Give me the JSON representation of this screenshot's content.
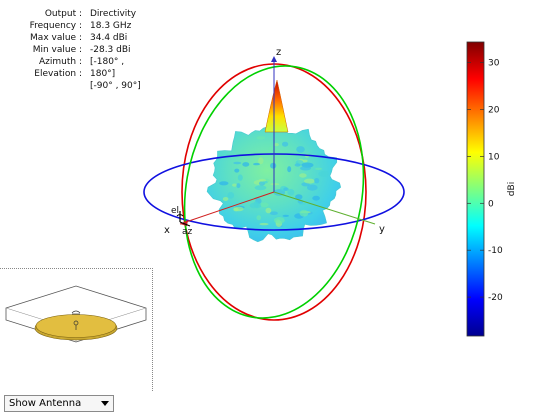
{
  "info": {
    "rows": [
      {
        "label": "Output :",
        "value": "Directivity"
      },
      {
        "label": "Frequency :",
        "value": "18.3 GHz"
      },
      {
        "label": "Max value :",
        "value": "34.4 dBi"
      },
      {
        "label": "Min value :",
        "value": "-28.3 dBi"
      },
      {
        "label": "Azimuth :",
        "value": "[-180° ,"
      },
      {
        "label": "Elevation :",
        "value": "180°]"
      },
      {
        "label": "",
        "value": "[-90° , 90°]"
      }
    ]
  },
  "axes": {
    "x": "x",
    "y": "y",
    "z": "z",
    "el": "el",
    "az": "az"
  },
  "chart_data": {
    "type": "3d-radiation-pattern",
    "output": "Directivity",
    "frequency_ghz": 18.3,
    "max_dbi": 34.4,
    "min_dbi": -28.3,
    "azimuth_range_deg": [
      -180,
      180
    ],
    "elevation_range_deg": [
      -90,
      90
    ],
    "colorbar": {
      "label": "dBi",
      "range": [
        -28.3,
        34.4
      ],
      "ticks": [
        30,
        20,
        10,
        0,
        -10,
        -20
      ],
      "colormap": "jet"
    },
    "reference_circles": [
      {
        "plane": "xy",
        "color": "#0000ff"
      },
      {
        "plane": "yz",
        "color": "#00d000"
      },
      {
        "plane": "xz",
        "color": "#e00000"
      }
    ]
  },
  "controls": {
    "antenna_select": "Show Antenna"
  },
  "colors": {
    "lobe_body": "#5ee0c4",
    "main_beam_tip": "#c80000"
  }
}
